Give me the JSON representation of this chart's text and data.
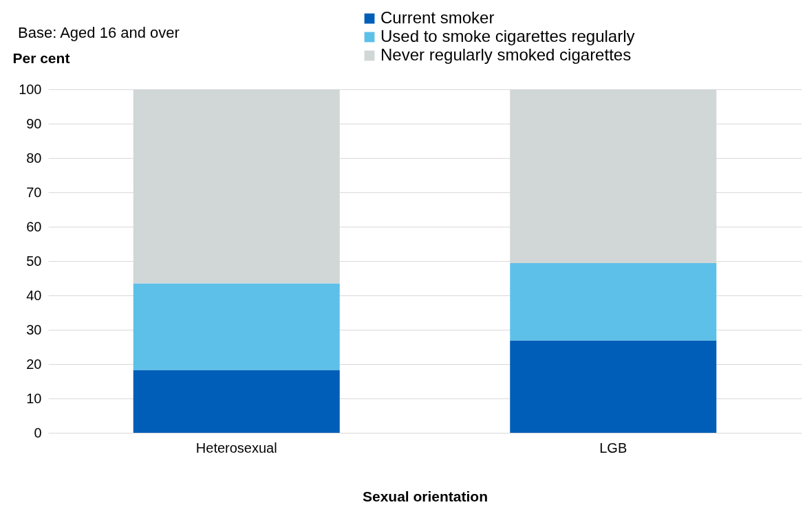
{
  "chart_data": {
    "type": "bar",
    "stacked": true,
    "title": "Base: Aged 16 and over",
    "ylabel": "Per cent",
    "xlabel": "Sexual orientation",
    "categories": [
      "Heterosexual",
      "LGB"
    ],
    "series": [
      {
        "name": "Current smoker",
        "color": "#005eb8",
        "values": [
          18.3,
          26.9
        ]
      },
      {
        "name": "Used to smoke cigarettes regularly",
        "color": "#5dc0e9",
        "values": [
          25.2,
          22.5
        ]
      },
      {
        "name": "Never regularly smoked cigarettes",
        "color": "#d1d6d7",
        "values": [
          56.5,
          50.6
        ]
      }
    ],
    "ylim": [
      0,
      100
    ],
    "yticks": [
      0,
      10,
      20,
      30,
      40,
      50,
      60,
      70,
      80,
      90,
      100
    ],
    "grid": "y",
    "legend": "top"
  }
}
